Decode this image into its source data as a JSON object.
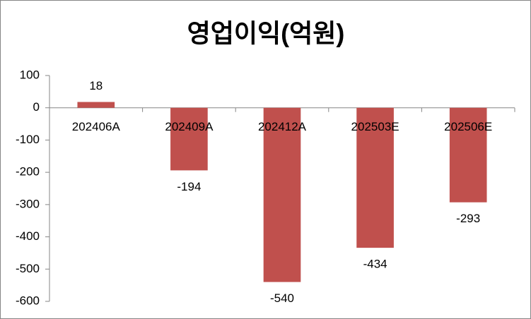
{
  "chart_data": {
    "type": "bar",
    "title": "영업이익(억원)",
    "categories": [
      "202406A",
      "202409A",
      "202412A",
      "202503E",
      "202506E"
    ],
    "values": [
      18,
      -194,
      -540,
      -434,
      -293
    ],
    "color": "#c0504d",
    "ylim": [
      -600,
      100
    ],
    "yticks": [
      -600,
      -500,
      -400,
      -300,
      -200,
      -100,
      0,
      100
    ]
  }
}
